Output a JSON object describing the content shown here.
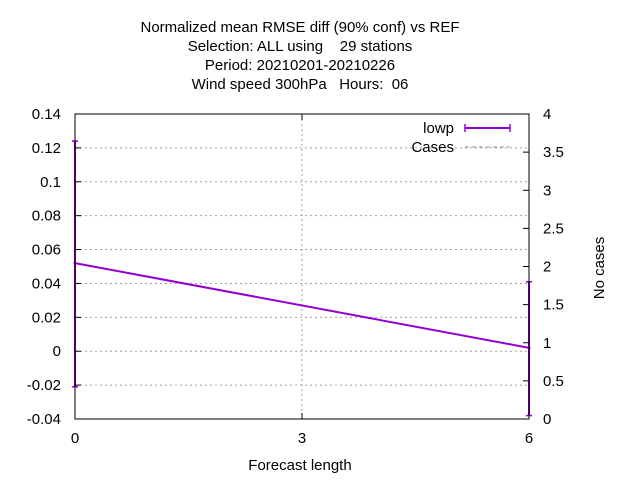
{
  "chart_data": {
    "type": "line",
    "title_lines": [
      "Normalized mean RMSE diff (90% conf) vs REF",
      "Selection: ALL using    29 stations",
      "Period: 20210201-20210226",
      "Wind speed 300hPa   Hours:  06"
    ],
    "xlabel": "Forecast length",
    "ylabel": "",
    "y2label": "No cases",
    "xlim": [
      0,
      6
    ],
    "ylim": [
      -0.04,
      0.14
    ],
    "y2lim": [
      0,
      4
    ],
    "x_ticks": [
      "0",
      "3",
      "6"
    ],
    "y_ticks": [
      "-0.04",
      "-0.02",
      "0",
      "0.02",
      "0.04",
      "0.06",
      "0.08",
      "0.1",
      "0.12",
      "0.14"
    ],
    "y2_ticks": [
      "0",
      "0.5",
      "1",
      "1.5",
      "2",
      "2.5",
      "3",
      "3.5",
      "4"
    ],
    "grid": true,
    "legend_position": "top-right",
    "series": [
      {
        "name": "lowp",
        "color": "#9400d3",
        "style": "line-with-errorbars",
        "x": [
          0,
          6
        ],
        "y": [
          0.052,
          0.002
        ],
        "err_low": [
          -0.021,
          -0.038
        ],
        "err_high": [
          0.124,
          0.041
        ]
      },
      {
        "name": "Cases",
        "color": "#999999",
        "style": "dashed",
        "axis": "y2",
        "x": [
          0,
          6
        ],
        "y": [
          4,
          4
        ]
      }
    ]
  }
}
